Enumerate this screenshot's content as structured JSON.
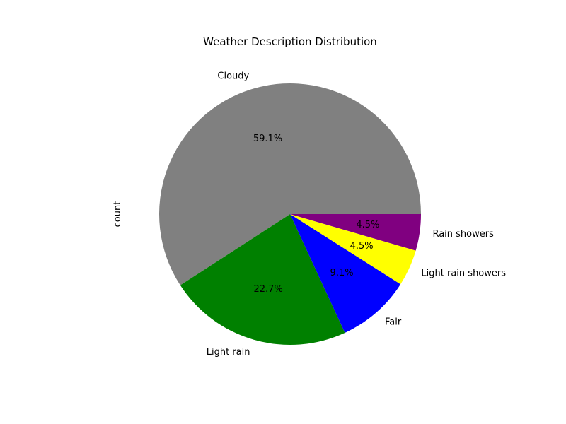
{
  "chart_data": {
    "type": "pie",
    "title": "Weather Description Distribution",
    "ylabel": "count",
    "slices": [
      {
        "label": "Cloudy",
        "percent": 59.1,
        "percent_label": "59.1%",
        "color": "#808080"
      },
      {
        "label": "Light rain",
        "percent": 22.7,
        "percent_label": "22.7%",
        "color": "#008000"
      },
      {
        "label": "Fair",
        "percent": 9.1,
        "percent_label": "9.1%",
        "color": "#0000ff"
      },
      {
        "label": "Light rain showers",
        "percent": 4.5,
        "percent_label": "4.5%",
        "color": "#ffff00"
      },
      {
        "label": "Rain showers",
        "percent": 4.5,
        "percent_label": "4.5%",
        "color": "#800080"
      }
    ]
  }
}
